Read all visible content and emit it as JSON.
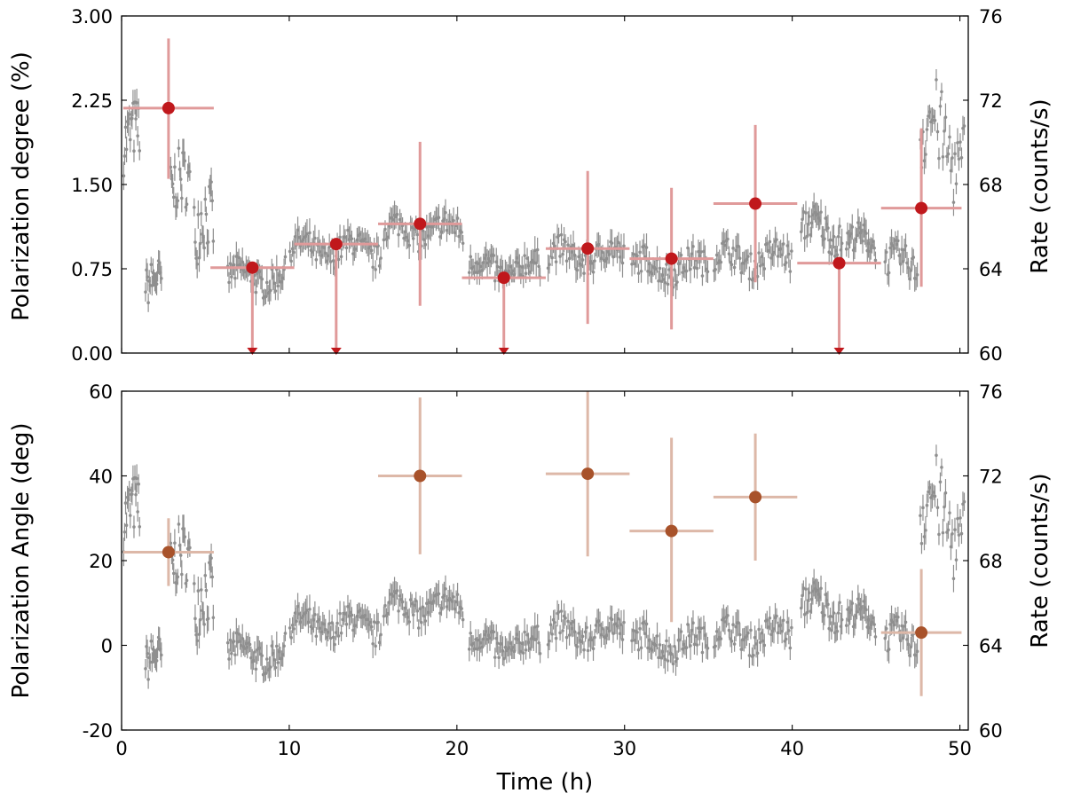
{
  "chart_data": [
    {
      "type": "scatter",
      "panel": "top",
      "xlabel": "",
      "ylabel": "Polarization degree (%)",
      "y2label": "Rate (counts/s)",
      "xlim": [
        0,
        50.5
      ],
      "ylim": [
        0,
        3.0
      ],
      "y2lim": [
        60,
        76
      ],
      "xticks": [
        0,
        10,
        20,
        30,
        40,
        50
      ],
      "yticks": [
        "0.00",
        "0.75",
        "1.50",
        "2.25",
        "3.00"
      ],
      "y2ticks": [
        60,
        64,
        68,
        72,
        76
      ],
      "colors": {
        "points": "#c0181c",
        "errorbars": "#e09a9a",
        "lightcurve": "#8f8f8f"
      },
      "series": [
        {
          "name": "Polarization degree",
          "points": [
            {
              "x": 2.8,
              "y": 2.18,
              "xerr": 2.7,
              "ylo": 1.55,
              "yhi": 2.8,
              "upper_limit": false
            },
            {
              "x": 7.8,
              "y": 0.76,
              "xerr": 2.5,
              "ylo": 0.0,
              "yhi": 0.76,
              "upper_limit": true
            },
            {
              "x": 12.8,
              "y": 0.97,
              "xerr": 2.5,
              "ylo": 0.0,
              "yhi": 0.97,
              "upper_limit": true
            },
            {
              "x": 17.8,
              "y": 1.15,
              "xerr": 2.5,
              "ylo": 0.42,
              "yhi": 1.88,
              "upper_limit": false
            },
            {
              "x": 22.8,
              "y": 0.67,
              "xerr": 2.5,
              "ylo": 0.0,
              "yhi": 0.67,
              "upper_limit": true
            },
            {
              "x": 27.8,
              "y": 0.93,
              "xerr": 2.5,
              "ylo": 0.26,
              "yhi": 1.62,
              "upper_limit": false
            },
            {
              "x": 32.8,
              "y": 0.84,
              "xerr": 2.5,
              "ylo": 0.21,
              "yhi": 1.47,
              "upper_limit": false
            },
            {
              "x": 37.8,
              "y": 1.33,
              "xerr": 2.5,
              "ylo": 0.63,
              "yhi": 2.03,
              "upper_limit": false
            },
            {
              "x": 42.8,
              "y": 0.8,
              "xerr": 2.5,
              "ylo": 0.0,
              "yhi": 0.8,
              "upper_limit": true
            },
            {
              "x": 47.7,
              "y": 1.29,
              "xerr": 2.4,
              "ylo": 0.59,
              "yhi": 2.0,
              "upper_limit": false
            }
          ]
        }
      ],
      "lightcurve_segments": [
        {
          "t0": 0.1,
          "t1": 1.1,
          "base": 69.8,
          "amp": 1.8,
          "n": 18
        },
        {
          "t0": 1.4,
          "t1": 2.4,
          "base": 63.0,
          "amp": 1.2,
          "n": 18
        },
        {
          "t0": 2.9,
          "t1": 4.1,
          "base": 67.5,
          "amp": 1.8,
          "n": 20
        },
        {
          "t0": 4.3,
          "t1": 5.5,
          "base": 65.5,
          "amp": 2.2,
          "n": 20
        },
        {
          "t0": 6.3,
          "t1": 9.8,
          "base": 63.6,
          "amp": 0.8,
          "n": 48
        },
        {
          "t0": 10.0,
          "t1": 15.5,
          "base": 64.9,
          "amp": 0.8,
          "n": 70
        },
        {
          "t0": 15.6,
          "t1": 20.4,
          "base": 65.8,
          "amp": 0.8,
          "n": 60
        },
        {
          "t0": 20.7,
          "t1": 25.0,
          "base": 64.0,
          "amp": 0.8,
          "n": 56
        },
        {
          "t0": 25.4,
          "t1": 30.0,
          "base": 64.6,
          "amp": 0.8,
          "n": 58
        },
        {
          "t0": 30.4,
          "t1": 35.0,
          "base": 64.1,
          "amp": 0.8,
          "n": 58
        },
        {
          "t0": 35.3,
          "t1": 40.0,
          "base": 64.5,
          "amp": 0.8,
          "n": 58
        },
        {
          "t0": 40.5,
          "t1": 43.0,
          "base": 65.8,
          "amp": 1.0,
          "n": 36
        },
        {
          "t0": 43.2,
          "t1": 45.0,
          "base": 65.2,
          "amp": 0.8,
          "n": 26
        },
        {
          "t0": 45.5,
          "t1": 47.5,
          "base": 64.2,
          "amp": 0.9,
          "n": 26
        },
        {
          "t0": 47.6,
          "t1": 50.3,
          "base": 70.0,
          "amp": 2.5,
          "n": 34
        }
      ]
    },
    {
      "type": "scatter",
      "panel": "bottom",
      "xlabel": "Time (h)",
      "ylabel": "Polarization Angle (deg)",
      "y2label": "Rate (counts/s)",
      "xlim": [
        0,
        50.5
      ],
      "ylim": [
        -20,
        60
      ],
      "y2lim": [
        60,
        76
      ],
      "xticks": [
        0,
        10,
        20,
        30,
        40,
        50
      ],
      "yticks": [
        -20,
        0,
        20,
        40,
        60
      ],
      "y2ticks": [
        60,
        64,
        68,
        72,
        76
      ],
      "colors": {
        "points": "#a8522a",
        "errorbars": "#ddb8a8",
        "lightcurve": "#8f8f8f"
      },
      "series": [
        {
          "name": "Polarization angle",
          "points": [
            {
              "x": 2.8,
              "y": 22.0,
              "xerr": 2.7,
              "ylo": 14.0,
              "yhi": 30.0
            },
            {
              "x": 17.8,
              "y": 40.0,
              "xerr": 2.5,
              "ylo": 21.5,
              "yhi": 58.5
            },
            {
              "x": 27.8,
              "y": 40.5,
              "xerr": 2.5,
              "ylo": 21.0,
              "yhi": 60.0
            },
            {
              "x": 32.8,
              "y": 27.0,
              "xerr": 2.5,
              "ylo": 5.5,
              "yhi": 49.0
            },
            {
              "x": 37.8,
              "y": 35.0,
              "xerr": 2.5,
              "ylo": 20.0,
              "yhi": 50.0
            },
            {
              "x": 47.7,
              "y": 3.0,
              "xerr": 2.4,
              "ylo": -12.0,
              "yhi": 18.0
            }
          ]
        }
      ]
    }
  ]
}
